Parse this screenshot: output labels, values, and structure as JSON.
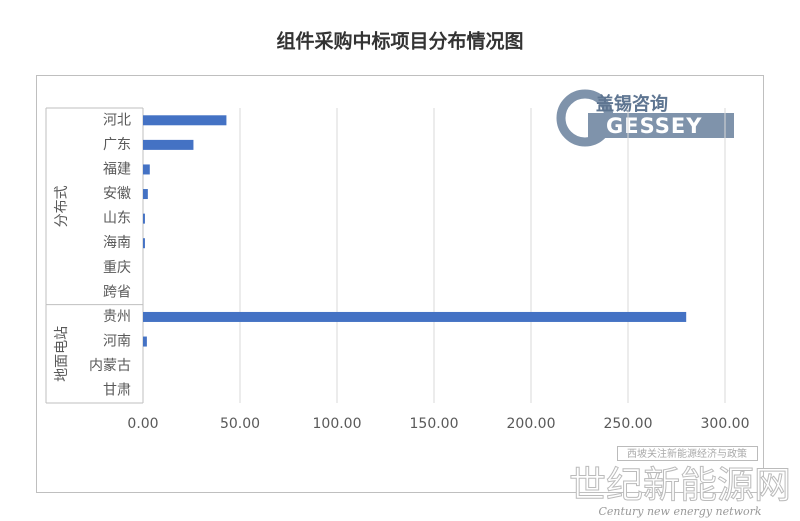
{
  "chart_data": {
    "type": "bar",
    "orientation": "horizontal",
    "title": "组件采购中标项目分布情况图",
    "groups": [
      {
        "name": "分布式",
        "categories": [
          "河北",
          "广东",
          "福建",
          "安徽",
          "山东",
          "海南",
          "重庆",
          "跨省"
        ],
        "values": [
          43,
          26,
          3.5,
          2.5,
          1,
          1,
          0,
          0
        ]
      },
      {
        "name": "地面电站",
        "categories": [
          "贵州",
          "河南",
          "内蒙古",
          "甘肃"
        ],
        "values": [
          280,
          2,
          0,
          0
        ]
      }
    ],
    "color": "#4472c4",
    "xlim": [
      0,
      300
    ],
    "xticks": [
      {
        "value": 0,
        "label": "0.00"
      },
      {
        "value": 50,
        "label": "50.00"
      },
      {
        "value": 100,
        "label": "100.00"
      },
      {
        "value": 150,
        "label": "150.00"
      },
      {
        "value": 200,
        "label": "200.00"
      },
      {
        "value": 250,
        "label": "250.00"
      },
      {
        "value": 300,
        "label": "300.00"
      }
    ],
    "grid": true,
    "logo": {
      "name": "盖锡咨询",
      "brand": "GESSEY"
    },
    "watermark": {
      "caption": "西坡关注新能源经济与政策",
      "site": "世纪新能源网",
      "site_en": "Century new energy network"
    }
  }
}
